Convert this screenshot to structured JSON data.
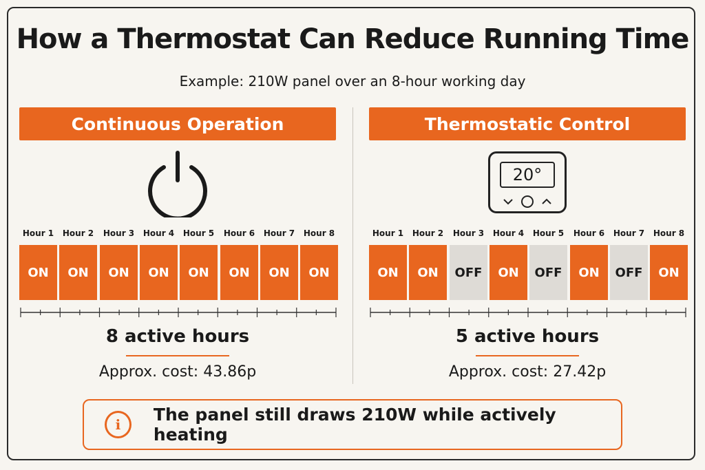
{
  "title": "How a Thermostat Can Reduce Running Time",
  "subtitle": "Example: 210W panel over an 8-hour working day",
  "accent_color": "#e8661f",
  "off_color": "#dedbd6",
  "left": {
    "banner": "Continuous Operation",
    "icon": "power-icon",
    "hours": [
      {
        "label": "Hour 1",
        "state": "ON"
      },
      {
        "label": "Hour 2",
        "state": "ON"
      },
      {
        "label": "Hour 3",
        "state": "ON"
      },
      {
        "label": "Hour 4",
        "state": "ON"
      },
      {
        "label": "Hour 5",
        "state": "ON"
      },
      {
        "label": "Hour 6",
        "state": "ON"
      },
      {
        "label": "Hour 7",
        "state": "ON"
      },
      {
        "label": "Hour 8",
        "state": "ON"
      }
    ],
    "active": "8 active hours",
    "cost": "Approx. cost: 43.86p"
  },
  "right": {
    "banner": "Thermostatic Control",
    "icon": "thermostat-icon",
    "thermostat_display": "20°",
    "hours": [
      {
        "label": "Hour 1",
        "state": "ON"
      },
      {
        "label": "Hour 2",
        "state": "ON"
      },
      {
        "label": "Hour 3",
        "state": "OFF"
      },
      {
        "label": "Hour 4",
        "state": "ON"
      },
      {
        "label": "Hour 5",
        "state": "OFF"
      },
      {
        "label": "Hour 6",
        "state": "ON"
      },
      {
        "label": "Hour 7",
        "state": "OFF"
      },
      {
        "label": "Hour 8",
        "state": "ON"
      }
    ],
    "active": "5 active hours",
    "cost": "Approx. cost: 27.42p"
  },
  "note": {
    "icon": "info-icon",
    "text": "The panel still draws 210W while actively heating"
  }
}
